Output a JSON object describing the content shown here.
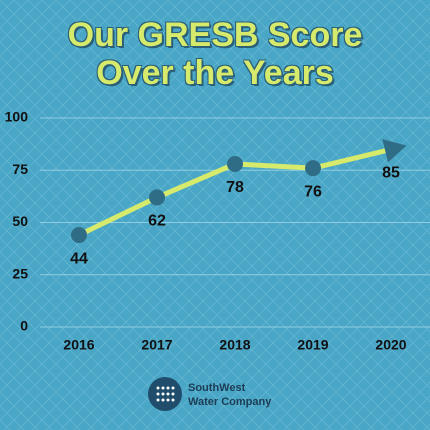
{
  "chart_data": {
    "type": "line",
    "title": "Our GRESB Score Over the Years",
    "categories": [
      "2016",
      "2017",
      "2018",
      "2019",
      "2020"
    ],
    "values": [
      44,
      62,
      78,
      76,
      85
    ],
    "color": "#d6ea6c",
    "marker_color": "#2f6d86",
    "ylim": [
      0,
      100
    ],
    "yticks": [
      0,
      25,
      50,
      75,
      100
    ],
    "grid": true
  },
  "logo": [
    "SouthWest",
    "Water Company"
  ]
}
